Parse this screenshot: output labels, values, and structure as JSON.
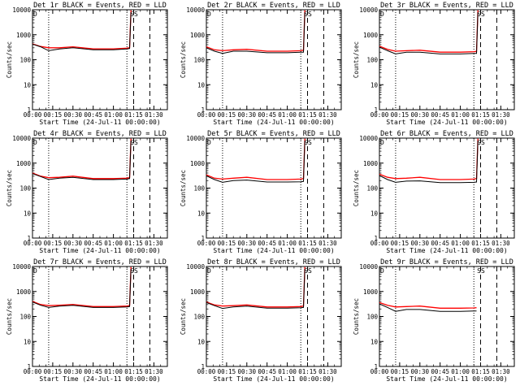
{
  "chart_data": [
    {
      "type": "line",
      "title": "Det 1r BLACK = Events, RED = LLD",
      "xlabel": "Start Time (24-Jul-11 00:00:00)",
      "ylabel": "Counts/sec",
      "yscale": "log",
      "ylim": [
        1,
        10000
      ],
      "xlim": [
        "00:00",
        "01:40"
      ],
      "xticks": [
        "00:00",
        "00:15",
        "00:30",
        "00:45",
        "01:00",
        "01:15",
        "01:30"
      ],
      "yticks": [
        "1",
        "10",
        "100",
        "1000",
        "10000"
      ],
      "markers": [
        "D",
        "SS"
      ],
      "vlines_dotted": [
        "00:12",
        "01:10"
      ],
      "vlines_dashed": [
        "01:15",
        "01:27"
      ],
      "series": [
        {
          "name": "Events",
          "color": "#000000",
          "x": [
            "00:00",
            "00:06",
            "00:12",
            "00:20",
            "00:30",
            "00:45",
            "01:00",
            "01:10",
            "01:12",
            "01:13"
          ],
          "y": [
            420,
            330,
            230,
            270,
            300,
            250,
            250,
            270,
            280,
            8000
          ]
        },
        {
          "name": "LLD",
          "color": "#ff0000",
          "x": [
            "00:00",
            "00:06",
            "00:12",
            "00:20",
            "00:30",
            "00:45",
            "01:00",
            "01:10",
            "01:12",
            "01:13"
          ],
          "y": [
            430,
            340,
            300,
            300,
            330,
            270,
            270,
            290,
            300,
            9500
          ]
        }
      ]
    },
    {
      "type": "line",
      "title": "Det 2r BLACK = Events, RED = LLD",
      "xlabel": "Start Time (24-Jul-11 00:00:00)",
      "ylabel": "Counts/sec",
      "yscale": "log",
      "ylim": [
        1,
        10000
      ],
      "xlim": [
        "00:00",
        "01:40"
      ],
      "xticks": [
        "00:00",
        "00:15",
        "00:30",
        "00:45",
        "01:00",
        "01:15",
        "01:30"
      ],
      "yticks": [
        "1",
        "10",
        "100",
        "1000",
        "10000"
      ],
      "markers": [
        "D",
        "SS"
      ],
      "vlines_dotted": [
        "00:12",
        "01:10"
      ],
      "vlines_dashed": [
        "01:15",
        "01:27"
      ],
      "series": [
        {
          "name": "Events",
          "color": "#000000",
          "x": [
            "00:00",
            "00:06",
            "00:12",
            "00:20",
            "00:30",
            "00:45",
            "01:00",
            "01:10",
            "01:12",
            "01:13"
          ],
          "y": [
            300,
            220,
            180,
            220,
            220,
            190,
            190,
            200,
            200,
            8000
          ]
        },
        {
          "name": "LLD",
          "color": "#ff0000",
          "x": [
            "00:00",
            "00:06",
            "00:12",
            "00:20",
            "00:30",
            "00:45",
            "01:00",
            "01:10",
            "01:12",
            "01:13"
          ],
          "y": [
            330,
            250,
            230,
            250,
            260,
            220,
            220,
            230,
            240,
            9500
          ]
        }
      ]
    },
    {
      "type": "line",
      "title": "Det 3r BLACK = Events, RED = LLD",
      "xlabel": "Start Time (24-Jul-11 00:00:00)",
      "ylabel": "Counts/sec",
      "yscale": "log",
      "ylim": [
        1,
        10000
      ],
      "xlim": [
        "00:00",
        "01:40"
      ],
      "xticks": [
        "00:00",
        "00:15",
        "00:30",
        "00:45",
        "01:00",
        "01:15",
        "01:30"
      ],
      "yticks": [
        "1",
        "10",
        "100",
        "1000",
        "10000"
      ],
      "markers": [
        "D",
        "SS"
      ],
      "vlines_dotted": [
        "00:12",
        "01:10"
      ],
      "vlines_dashed": [
        "01:15",
        "01:27"
      ],
      "series": [
        {
          "name": "Events",
          "color": "#000000",
          "x": [
            "00:00",
            "00:06",
            "00:12",
            "00:20",
            "00:30",
            "00:45",
            "01:00",
            "01:10",
            "01:12",
            "01:13"
          ],
          "y": [
            320,
            230,
            170,
            200,
            200,
            170,
            170,
            180,
            180,
            8000
          ]
        },
        {
          "name": "LLD",
          "color": "#ff0000",
          "x": [
            "00:00",
            "00:06",
            "00:12",
            "00:20",
            "00:30",
            "00:45",
            "01:00",
            "01:10",
            "01:12",
            "01:13"
          ],
          "y": [
            350,
            260,
            220,
            230,
            240,
            200,
            200,
            210,
            215,
            9500
          ]
        }
      ]
    },
    {
      "type": "line",
      "title": "Det 4r BLACK = Events, RED = LLD",
      "xlabel": "Start Time (24-Jul-11 00:00:00)",
      "ylabel": "Counts/sec",
      "yscale": "log",
      "ylim": [
        1,
        10000
      ],
      "xlim": [
        "00:00",
        "01:40"
      ],
      "xticks": [
        "00:00",
        "00:15",
        "00:30",
        "00:45",
        "01:00",
        "01:15",
        "01:30"
      ],
      "yticks": [
        "1",
        "10",
        "100",
        "1000",
        "10000"
      ],
      "markers": [
        "D",
        "SS"
      ],
      "vlines_dotted": [
        "00:12",
        "01:10"
      ],
      "vlines_dashed": [
        "01:15",
        "01:27"
      ],
      "series": [
        {
          "name": "Events",
          "color": "#000000",
          "x": [
            "00:00",
            "00:06",
            "00:12",
            "00:20",
            "00:30",
            "00:45",
            "01:00",
            "01:10",
            "01:12",
            "01:13"
          ],
          "y": [
            380,
            290,
            220,
            250,
            270,
            220,
            220,
            230,
            240,
            8000
          ]
        },
        {
          "name": "LLD",
          "color": "#ff0000",
          "x": [
            "00:00",
            "00:06",
            "00:12",
            "00:20",
            "00:30",
            "00:45",
            "01:00",
            "01:10",
            "01:12",
            "01:13"
          ],
          "y": [
            400,
            300,
            260,
            270,
            300,
            240,
            240,
            250,
            260,
            9500
          ]
        }
      ]
    },
    {
      "type": "line",
      "title": "Det 5r BLACK = Events, RED = LLD",
      "xlabel": "Start Time (24-Jul-11 00:00:00)",
      "ylabel": "Counts/sec",
      "yscale": "log",
      "ylim": [
        1,
        10000
      ],
      "xlim": [
        "00:00",
        "01:40"
      ],
      "xticks": [
        "00:00",
        "00:15",
        "00:30",
        "00:45",
        "01:00",
        "01:15",
        "01:30"
      ],
      "yticks": [
        "1",
        "10",
        "100",
        "1000",
        "10000"
      ],
      "markers": [
        "D",
        "SS"
      ],
      "vlines_dotted": [
        "00:12",
        "01:10"
      ],
      "vlines_dashed": [
        "01:15",
        "01:27"
      ],
      "series": [
        {
          "name": "Events",
          "color": "#000000",
          "x": [
            "00:00",
            "00:06",
            "00:12",
            "00:20",
            "00:30",
            "00:45",
            "01:00",
            "01:10",
            "01:12",
            "01:13"
          ],
          "y": [
            310,
            220,
            170,
            200,
            210,
            175,
            175,
            180,
            185,
            8000
          ]
        },
        {
          "name": "LLD",
          "color": "#ff0000",
          "x": [
            "00:00",
            "00:06",
            "00:12",
            "00:20",
            "00:30",
            "00:45",
            "01:00",
            "01:10",
            "01:12",
            "01:13"
          ],
          "y": [
            340,
            250,
            230,
            250,
            270,
            220,
            220,
            230,
            240,
            9500
          ]
        }
      ]
    },
    {
      "type": "line",
      "title": "Det 6r BLACK = Events, RED = LLD",
      "xlabel": "Start Time (24-Jul-11 00:00:00)",
      "ylabel": "Counts/sec",
      "yscale": "log",
      "ylim": [
        1,
        10000
      ],
      "xlim": [
        "00:00",
        "01:40"
      ],
      "xticks": [
        "00:00",
        "00:15",
        "00:30",
        "00:45",
        "01:00",
        "01:15",
        "01:30"
      ],
      "yticks": [
        "1",
        "10",
        "100",
        "1000",
        "10000"
      ],
      "markers": [
        "D",
        "SS"
      ],
      "vlines_dotted": [
        "00:12",
        "01:10"
      ],
      "vlines_dashed": [
        "01:15",
        "01:27"
      ],
      "series": [
        {
          "name": "Events",
          "color": "#000000",
          "x": [
            "00:00",
            "00:06",
            "00:12",
            "00:20",
            "00:30",
            "00:45",
            "01:00",
            "01:10",
            "01:12",
            "01:13"
          ],
          "y": [
            320,
            220,
            170,
            190,
            195,
            165,
            165,
            170,
            175,
            8000
          ]
        },
        {
          "name": "LLD",
          "color": "#ff0000",
          "x": [
            "00:00",
            "00:06",
            "00:12",
            "00:20",
            "00:30",
            "00:45",
            "01:00",
            "01:10",
            "01:12",
            "01:13"
          ],
          "y": [
            360,
            270,
            240,
            250,
            270,
            220,
            220,
            230,
            240,
            9500
          ]
        }
      ]
    },
    {
      "type": "line",
      "title": "Det 7r BLACK = Events, RED = LLD",
      "xlabel": "Start Time (24-Jul-11 00:00:00)",
      "ylabel": "Counts/sec",
      "yscale": "log",
      "ylim": [
        1,
        10000
      ],
      "xlim": [
        "00:00",
        "01:40"
      ],
      "xticks": [
        "00:00",
        "00:15",
        "00:30",
        "00:45",
        "01:00",
        "01:15",
        "01:30"
      ],
      "yticks": [
        "1",
        "10",
        "100",
        "1000",
        "10000"
      ],
      "markers": [
        "D",
        "SS"
      ],
      "vlines_dotted": [
        "00:12",
        "01:10"
      ],
      "vlines_dashed": [
        "01:15",
        "01:27"
      ],
      "series": [
        {
          "name": "Events",
          "color": "#000000",
          "x": [
            "00:00",
            "00:06",
            "00:12",
            "00:20",
            "00:30",
            "00:45",
            "01:00",
            "01:10",
            "01:12",
            "01:13"
          ],
          "y": [
            380,
            280,
            230,
            260,
            280,
            230,
            230,
            240,
            250,
            8000
          ]
        },
        {
          "name": "LLD",
          "color": "#ff0000",
          "x": [
            "00:00",
            "00:06",
            "00:12",
            "00:20",
            "00:30",
            "00:45",
            "01:00",
            "01:10",
            "01:12",
            "01:13"
          ],
          "y": [
            400,
            300,
            270,
            280,
            300,
            250,
            250,
            260,
            270,
            9500
          ]
        }
      ]
    },
    {
      "type": "line",
      "title": "Det 8r BLACK = Events, RED = LLD",
      "xlabel": "Start Time (24-Jul-11 00:00:00)",
      "ylabel": "Counts/sec",
      "yscale": "log",
      "ylim": [
        1,
        10000
      ],
      "xlim": [
        "00:00",
        "01:40"
      ],
      "xticks": [
        "00:00",
        "00:15",
        "00:30",
        "00:45",
        "01:00",
        "01:15",
        "01:30"
      ],
      "yticks": [
        "1",
        "10",
        "100",
        "1000",
        "10000"
      ],
      "markers": [
        "D",
        "SS"
      ],
      "vlines_dotted": [
        "00:12",
        "01:10"
      ],
      "vlines_dashed": [
        "01:15",
        "01:27"
      ],
      "series": [
        {
          "name": "Events",
          "color": "#000000",
          "x": [
            "00:00",
            "00:06",
            "00:12",
            "00:20",
            "00:30",
            "00:45",
            "01:00",
            "01:10",
            "01:12",
            "01:13"
          ],
          "y": [
            360,
            270,
            210,
            240,
            260,
            215,
            215,
            225,
            230,
            8000
          ]
        },
        {
          "name": "LLD",
          "color": "#ff0000",
          "x": [
            "00:00",
            "00:06",
            "00:12",
            "00:20",
            "00:30",
            "00:45",
            "01:00",
            "01:10",
            "01:12",
            "01:13"
          ],
          "y": [
            380,
            290,
            260,
            270,
            290,
            240,
            240,
            250,
            260,
            9500
          ]
        }
      ]
    },
    {
      "type": "line",
      "title": "Det 9r BLACK = Events, RED = LLD",
      "xlabel": "Start Time (24-Jul-11 00:00:00)",
      "ylabel": "Counts/sec",
      "yscale": "log",
      "ylim": [
        1,
        10000
      ],
      "xlim": [
        "00:00",
        "01:40"
      ],
      "xticks": [
        "00:00",
        "00:15",
        "00:30",
        "00:45",
        "01:00",
        "01:15",
        "01:30"
      ],
      "yticks": [
        "1",
        "10",
        "100",
        "1000",
        "10000"
      ],
      "markers": [
        "D",
        "SS"
      ],
      "vlines_dotted": [
        "00:12",
        "01:10"
      ],
      "vlines_dashed": [
        "01:15",
        "01:27"
      ],
      "series": [
        {
          "name": "Events",
          "color": "#000000",
          "x": [
            "00:00",
            "00:06",
            "00:12",
            "00:20",
            "00:30",
            "00:45",
            "01:00",
            "01:10",
            "01:12"
          ],
          "y": [
            320,
            230,
            160,
            190,
            190,
            160,
            160,
            165,
            165
          ]
        },
        {
          "name": "LLD",
          "color": "#ff0000",
          "x": [
            "00:00",
            "00:06",
            "00:12",
            "00:20",
            "00:30",
            "00:45",
            "01:00",
            "01:10",
            "01:12"
          ],
          "y": [
            360,
            280,
            240,
            250,
            260,
            215,
            215,
            220,
            225
          ]
        }
      ]
    }
  ]
}
